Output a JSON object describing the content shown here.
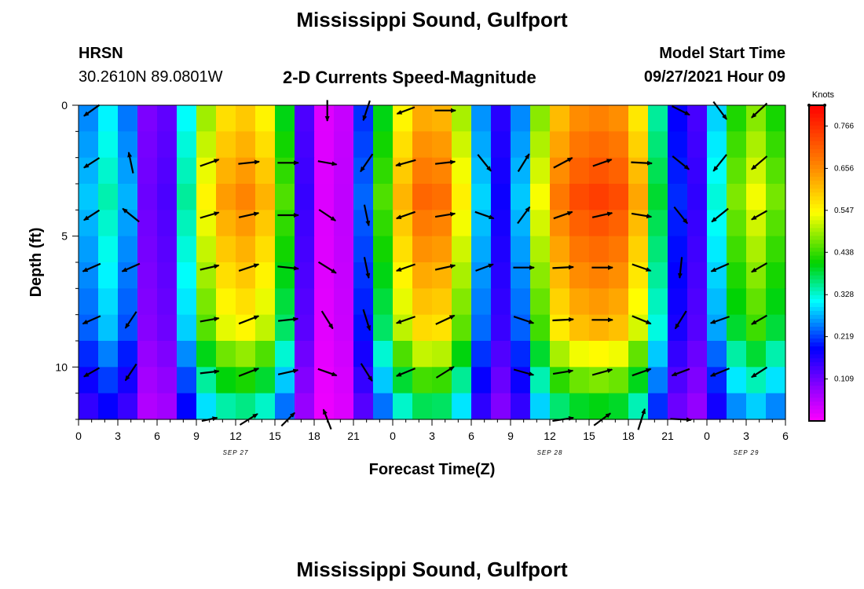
{
  "header": {
    "title": "Mississippi Sound, Gulfport",
    "station": "HRSN",
    "coords": "30.2610N  89.0801W",
    "subtitle": "2-D Currents Speed-Magnitude",
    "model_start_label": "Model Start Time",
    "model_start_value": "09/27/2021 Hour 09"
  },
  "footer": {
    "title": "Mississippi Sound, Gulfport"
  },
  "chart_data": {
    "type": "heatmap",
    "title": "2-D Currents Speed-Magnitude",
    "xlabel": "Forecast Time(Z)",
    "ylabel": "Depth (ft)",
    "xlim": [
      0,
      54
    ],
    "ylim": [
      0,
      12
    ],
    "x_ticks": [
      0,
      3,
      6,
      9,
      12,
      15,
      18,
      21,
      24,
      27,
      30,
      33,
      36,
      39,
      42,
      45,
      48,
      51,
      54
    ],
    "x_tick_labels": [
      "0",
      "3",
      "6",
      "9",
      "12",
      "15",
      "18",
      "21",
      "0",
      "3",
      "6",
      "9",
      "12",
      "15",
      "18",
      "21",
      "0",
      "3",
      "6"
    ],
    "y_ticks": [
      0,
      5,
      10
    ],
    "y_tick_labels": [
      "0",
      "5",
      "10"
    ],
    "date_labels": [
      {
        "text": "SEP 27",
        "x": 12
      },
      {
        "text": "SEP 28",
        "x": 36
      },
      {
        "text": "SEP 29",
        "x": 51
      }
    ],
    "colorbar": {
      "label": "Knots",
      "min": 0.0,
      "max": 0.82,
      "ticks": [
        0.109,
        0.219,
        0.328,
        0.438,
        0.547,
        0.656,
        0.766
      ],
      "tick_labels": [
        "0.109",
        "0.219",
        "0.328",
        "0.438",
        "0.547",
        "0.656",
        "0.766"
      ]
    },
    "depth_rows": [
      0.5,
      1.5,
      2.5,
      3.5,
      4.5,
      5.5,
      6.5,
      7.5,
      8.5,
      9.5,
      10.5,
      11.5
    ],
    "speed_profiles": [
      [
        0.0,
        0.15
      ],
      [
        1.0,
        0.33
      ],
      [
        3.0,
        0.35
      ],
      [
        4.5,
        0.2
      ],
      [
        5.0,
        0.12
      ],
      [
        6.0,
        0.09
      ],
      [
        7.0,
        0.15
      ],
      [
        8.0,
        0.3
      ],
      [
        9.0,
        0.5
      ],
      [
        10.5,
        0.6
      ],
      [
        12.0,
        0.68
      ],
      [
        14.0,
        0.64
      ],
      [
        15.5,
        0.5
      ],
      [
        16.5,
        0.3
      ],
      [
        17.5,
        0.1
      ],
      [
        18.5,
        0.03
      ],
      [
        19.5,
        0.02
      ],
      [
        20.5,
        0.06
      ],
      [
        21.5,
        0.2
      ],
      [
        22.5,
        0.35
      ],
      [
        24.0,
        0.55
      ],
      [
        25.5,
        0.68
      ],
      [
        27.0,
        0.72
      ],
      [
        28.5,
        0.66
      ],
      [
        30.0,
        0.45
      ],
      [
        30.8,
        0.28
      ],
      [
        32.0,
        0.18
      ],
      [
        33.0,
        0.18
      ],
      [
        34.0,
        0.32
      ],
      [
        35.0,
        0.5
      ],
      [
        36.0,
        0.65
      ],
      [
        38.0,
        0.73
      ],
      [
        40.0,
        0.75
      ],
      [
        42.0,
        0.72
      ],
      [
        43.0,
        0.6
      ],
      [
        44.5,
        0.35
      ],
      [
        46.0,
        0.18
      ],
      [
        47.5,
        0.15
      ],
      [
        48.5,
        0.3
      ],
      [
        50.0,
        0.45
      ],
      [
        51.0,
        0.55
      ],
      [
        52.5,
        0.52
      ],
      [
        54.0,
        0.42
      ]
    ],
    "vector_times": [
      1,
      4,
      10,
      13,
      16,
      19,
      22,
      25,
      28,
      31,
      34,
      37,
      40,
      43,
      46,
      49,
      52
    ],
    "vector_depths": [
      0.2,
      2.2,
      4.2,
      6.2,
      8.2,
      10.2,
      12.0
    ],
    "vectors": [
      {
        "t": 1,
        "rows": [
          [
            -0.7,
            0.5
          ],
          [
            -0.7,
            0.45
          ],
          [
            -0.7,
            0.45
          ],
          [
            -0.8,
            0.35
          ],
          [
            -0.8,
            0.35
          ],
          [
            -0.7,
            0.4
          ],
          null
        ]
      },
      {
        "t": 4,
        "rows": [
          null,
          [
            -0.2,
            -0.95
          ],
          [
            -0.75,
            -0.6
          ],
          [
            -0.8,
            0.35
          ],
          [
            -0.5,
            0.75
          ],
          [
            -0.5,
            0.75
          ],
          null
        ]
      },
      {
        "t": 10,
        "rows": [
          null,
          [
            0.85,
            -0.3
          ],
          [
            0.85,
            -0.25
          ],
          [
            0.85,
            -0.2
          ],
          [
            0.85,
            -0.15
          ],
          [
            0.85,
            -0.1
          ],
          [
            0.7,
            -0.15
          ]
        ]
      },
      {
        "t": 13,
        "rows": [
          null,
          [
            0.95,
            -0.1
          ],
          [
            0.9,
            -0.2
          ],
          [
            0.9,
            -0.3
          ],
          [
            0.9,
            -0.35
          ],
          [
            0.9,
            -0.35
          ],
          [
            0.8,
            -0.5
          ]
        ]
      },
      {
        "t": 16,
        "rows": [
          null,
          [
            0.95,
            0.0
          ],
          [
            0.95,
            0.0
          ],
          [
            0.95,
            0.1
          ],
          [
            0.9,
            -0.1
          ],
          [
            0.9,
            -0.2
          ],
          [
            0.6,
            -0.6
          ]
        ]
      },
      {
        "t": 19,
        "rows": [
          [
            0.0,
            0.95
          ],
          [
            0.85,
            0.15
          ],
          [
            0.75,
            0.5
          ],
          [
            0.8,
            0.5
          ],
          [
            0.5,
            0.8
          ],
          [
            0.85,
            0.3
          ],
          [
            -0.35,
            -0.9
          ]
        ]
      },
      {
        "t": 22,
        "rows": [
          [
            -0.3,
            0.9
          ],
          [
            -0.55,
            0.8
          ],
          [
            0.2,
            0.95
          ],
          [
            0.2,
            0.95
          ],
          [
            0.3,
            0.95
          ],
          [
            0.5,
            0.8
          ],
          null
        ]
      },
      {
        "t": 25,
        "rows": [
          [
            -0.8,
            0.3
          ],
          [
            -0.9,
            0.25
          ],
          [
            -0.85,
            0.3
          ],
          [
            -0.85,
            0.3
          ],
          [
            -0.85,
            0.3
          ],
          [
            -0.85,
            0.35
          ],
          null
        ]
      },
      {
        "t": 28,
        "rows": [
          [
            0.95,
            0.0
          ],
          [
            0.9,
            -0.1
          ],
          [
            0.9,
            -0.15
          ],
          [
            0.9,
            -0.2
          ],
          [
            0.85,
            -0.4
          ],
          [
            0.8,
            -0.5
          ],
          null
        ]
      },
      {
        "t": 31,
        "rows": [
          [
            null
          ],
          [
            0.6,
            0.75
          ],
          [
            0.85,
            0.3
          ],
          [
            0.8,
            -0.3
          ],
          [
            0.0,
            0.0
          ],
          [
            0.0,
            0.0
          ],
          null
        ]
      },
      {
        "t": 34,
        "rows": [
          null,
          [
            0.5,
            -0.8
          ],
          [
            0.55,
            -0.75
          ],
          [
            0.95,
            0.0
          ],
          [
            0.9,
            0.3
          ],
          [
            0.9,
            0.25
          ],
          null
        ]
      },
      {
        "t": 37,
        "rows": [
          null,
          [
            0.85,
            -0.45
          ],
          [
            0.85,
            -0.3
          ],
          [
            0.95,
            -0.05
          ],
          [
            0.95,
            -0.05
          ],
          [
            0.9,
            -0.15
          ],
          [
            0.95,
            -0.15
          ]
        ]
      },
      {
        "t": 40,
        "rows": [
          null,
          [
            0.85,
            -0.3
          ],
          [
            0.9,
            -0.2
          ],
          [
            0.95,
            0.0
          ],
          [
            0.95,
            0.0
          ],
          [
            0.9,
            -0.25
          ],
          [
            0.75,
            -0.55
          ]
        ]
      },
      {
        "t": 43,
        "rows": [
          null,
          [
            0.95,
            0.05
          ],
          [
            0.9,
            0.15
          ],
          [
            0.85,
            0.3
          ],
          [
            0.85,
            0.35
          ],
          [
            0.85,
            -0.3
          ],
          [
            0.3,
            -0.95
          ]
        ]
      },
      {
        "t": 46,
        "rows": [
          [
            0.8,
            0.4
          ],
          [
            0.75,
            0.6
          ],
          [
            0.6,
            0.75
          ],
          [
            -0.1,
            0.95
          ],
          [
            -0.5,
            0.8
          ],
          [
            -0.8,
            0.3
          ],
          [
            0.95,
            0.05
          ]
        ]
      },
      {
        "t": 49,
        "rows": [
          [
            0.6,
            0.8
          ],
          [
            -0.6,
            0.75
          ],
          [
            -0.75,
            0.6
          ],
          [
            -0.8,
            0.35
          ],
          [
            -0.85,
            0.3
          ],
          [
            -0.85,
            0.35
          ],
          null
        ]
      },
      {
        "t": 52,
        "rows": [
          [
            -0.7,
            0.65
          ],
          [
            -0.7,
            0.6
          ],
          [
            -0.7,
            0.4
          ],
          [
            -0.7,
            0.4
          ],
          [
            -0.7,
            0.4
          ],
          [
            -0.7,
            0.45
          ],
          null
        ]
      }
    ]
  }
}
